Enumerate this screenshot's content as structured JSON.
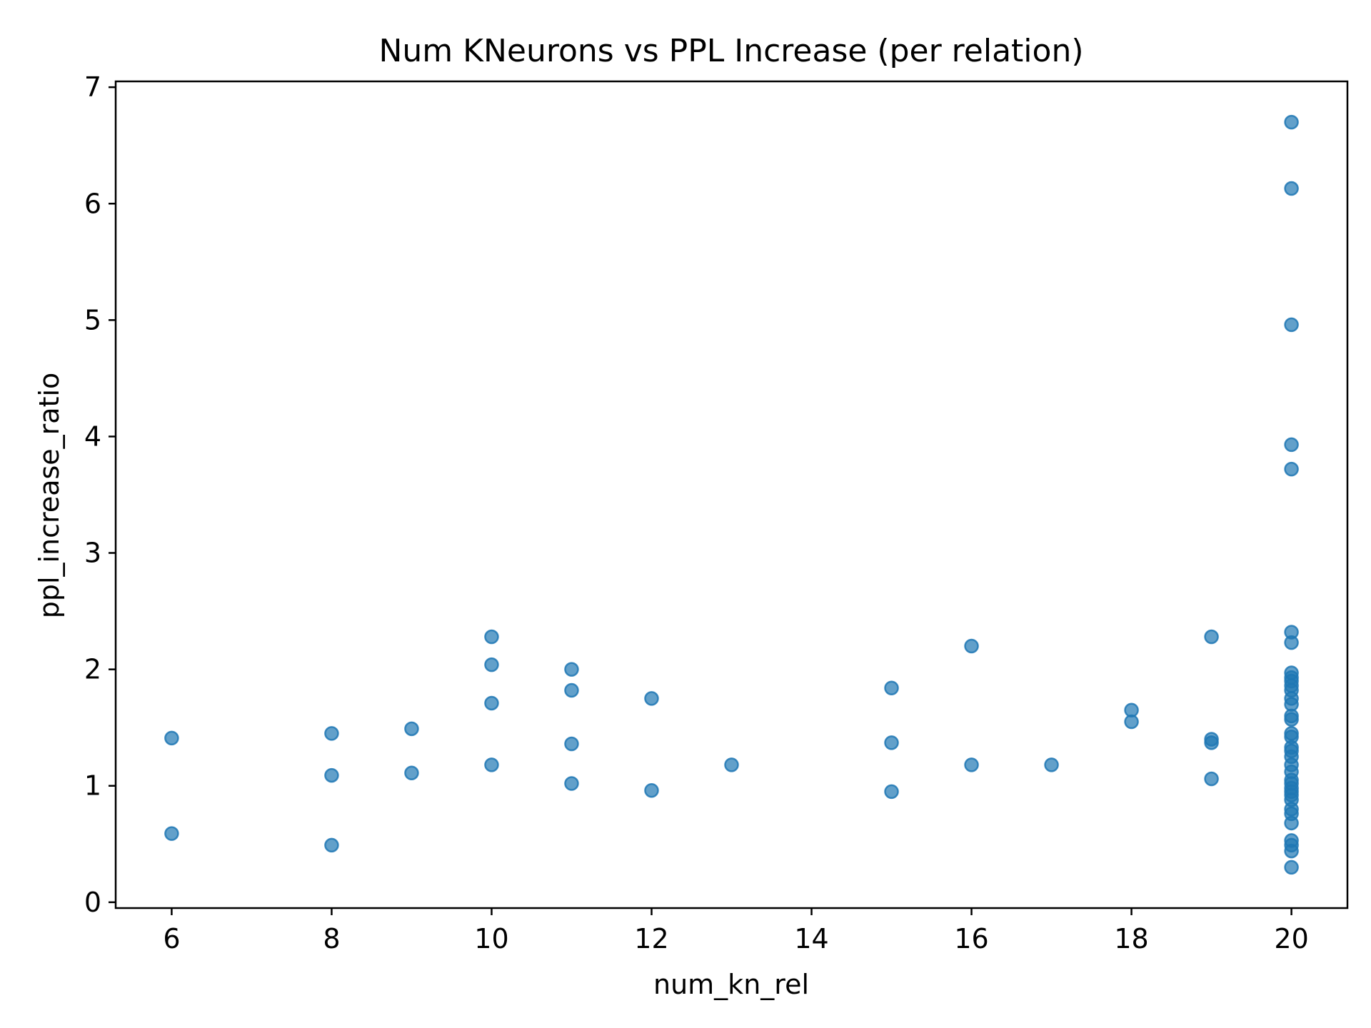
{
  "chart_data": {
    "type": "scatter",
    "title": "Num KNeurons vs PPL Increase (per relation)",
    "xlabel": "num_kn_rel",
    "ylabel": "ppl_increase_ratio",
    "xlim": [
      5.3,
      20.7
    ],
    "ylim": [
      -0.05,
      7.05
    ],
    "xticks": [
      6,
      8,
      10,
      12,
      14,
      16,
      18,
      20
    ],
    "yticks": [
      0,
      1,
      2,
      3,
      4,
      5,
      6,
      7
    ],
    "grid": false,
    "legend": "none",
    "marker_color": "#1f77b4",
    "marker_alpha": 0.7,
    "points": [
      {
        "x": 6,
        "y": 1.41
      },
      {
        "x": 6,
        "y": 0.59
      },
      {
        "x": 8,
        "y": 1.45
      },
      {
        "x": 8,
        "y": 1.09
      },
      {
        "x": 8,
        "y": 0.49
      },
      {
        "x": 9,
        "y": 1.49
      },
      {
        "x": 9,
        "y": 1.11
      },
      {
        "x": 10,
        "y": 2.28
      },
      {
        "x": 10,
        "y": 2.04
      },
      {
        "x": 10,
        "y": 1.71
      },
      {
        "x": 10,
        "y": 1.18
      },
      {
        "x": 11,
        "y": 2.0
      },
      {
        "x": 11,
        "y": 1.82
      },
      {
        "x": 11,
        "y": 1.36
      },
      {
        "x": 11,
        "y": 1.02
      },
      {
        "x": 12,
        "y": 1.75
      },
      {
        "x": 12,
        "y": 0.96
      },
      {
        "x": 13,
        "y": 1.18
      },
      {
        "x": 15,
        "y": 1.84
      },
      {
        "x": 15,
        "y": 1.37
      },
      {
        "x": 15,
        "y": 0.95
      },
      {
        "x": 16,
        "y": 2.2
      },
      {
        "x": 16,
        "y": 1.18
      },
      {
        "x": 17,
        "y": 1.18
      },
      {
        "x": 18,
        "y": 1.65
      },
      {
        "x": 18,
        "y": 1.55
      },
      {
        "x": 19,
        "y": 2.28
      },
      {
        "x": 19,
        "y": 1.4
      },
      {
        "x": 19,
        "y": 1.37
      },
      {
        "x": 19,
        "y": 1.06
      },
      {
        "x": 20,
        "y": 6.7
      },
      {
        "x": 20,
        "y": 6.13
      },
      {
        "x": 20,
        "y": 4.96
      },
      {
        "x": 20,
        "y": 3.93
      },
      {
        "x": 20,
        "y": 3.72
      },
      {
        "x": 20,
        "y": 2.32
      },
      {
        "x": 20,
        "y": 2.23
      },
      {
        "x": 20,
        "y": 1.97
      },
      {
        "x": 20,
        "y": 1.93
      },
      {
        "x": 20,
        "y": 1.9
      },
      {
        "x": 20,
        "y": 1.86
      },
      {
        "x": 20,
        "y": 1.82
      },
      {
        "x": 20,
        "y": 1.75
      },
      {
        "x": 20,
        "y": 1.7
      },
      {
        "x": 20,
        "y": 1.6
      },
      {
        "x": 20,
        "y": 1.57
      },
      {
        "x": 20,
        "y": 1.45
      },
      {
        "x": 20,
        "y": 1.42
      },
      {
        "x": 20,
        "y": 1.33
      },
      {
        "x": 20,
        "y": 1.3
      },
      {
        "x": 20,
        "y": 1.25
      },
      {
        "x": 20,
        "y": 1.18
      },
      {
        "x": 20,
        "y": 1.12
      },
      {
        "x": 20,
        "y": 1.05
      },
      {
        "x": 20,
        "y": 1.02
      },
      {
        "x": 20,
        "y": 0.98
      },
      {
        "x": 20,
        "y": 0.95
      },
      {
        "x": 20,
        "y": 0.92
      },
      {
        "x": 20,
        "y": 0.88
      },
      {
        "x": 20,
        "y": 0.8
      },
      {
        "x": 20,
        "y": 0.76
      },
      {
        "x": 20,
        "y": 0.68
      },
      {
        "x": 20,
        "y": 0.53
      },
      {
        "x": 20,
        "y": 0.49
      },
      {
        "x": 20,
        "y": 0.44
      },
      {
        "x": 20,
        "y": 0.3
      }
    ]
  }
}
